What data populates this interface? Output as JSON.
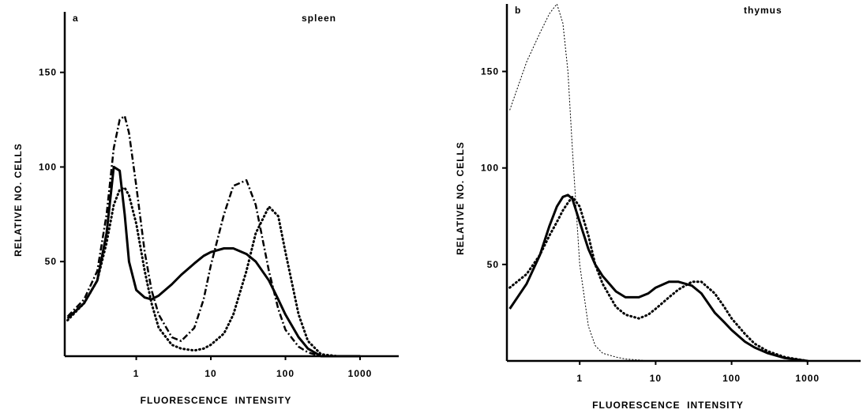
{
  "chart_data": [
    {
      "type": "line",
      "panel_label": "a",
      "title": "spleen",
      "xlabel": "FLUORESCENCE  INTENSITY",
      "ylabel": "RELATIVE NO. CELLS",
      "log_x": true,
      "xlim": [
        0.11,
        3300
      ],
      "ylim": [
        0,
        182
      ],
      "xticks": [
        1,
        10,
        100,
        1000
      ],
      "yticks": [
        50,
        100,
        150
      ],
      "x": [
        0.12,
        0.2,
        0.3,
        0.4,
        0.5,
        0.6,
        0.7,
        0.8,
        1,
        1.3,
        1.6,
        2,
        3,
        4,
        6,
        8,
        10,
        15,
        20,
        30,
        40,
        60,
        80,
        100,
        150,
        200,
        300,
        500,
        1000
      ],
      "series": [
        {
          "color": "#000000",
          "style": "solid",
          "values": [
            20,
            28,
            40,
            65,
            100,
            98,
            75,
            50,
            35,
            31,
            30,
            32,
            38,
            43,
            49,
            53,
            55,
            57,
            57,
            54,
            50,
            40,
            30,
            22,
            10,
            4,
            0,
            0,
            0
          ]
        },
        {
          "color": "#000000",
          "style": "dashdot",
          "values": [
            21,
            30,
            45,
            75,
            110,
            125,
            127,
            118,
            90,
            55,
            35,
            22,
            10,
            8,
            15,
            30,
            48,
            75,
            90,
            93,
            80,
            45,
            25,
            14,
            5,
            2,
            0,
            0,
            0
          ]
        },
        {
          "color": "#000000",
          "style": "dotted",
          "values": [
            19,
            28,
            40,
            60,
            80,
            88,
            89,
            85,
            70,
            45,
            28,
            15,
            6,
            4,
            3,
            4,
            6,
            12,
            22,
            45,
            65,
            79,
            74,
            55,
            22,
            8,
            1,
            0,
            0
          ]
        }
      ]
    },
    {
      "type": "line",
      "panel_label": "b",
      "title": "thymus",
      "xlabel": "FLUORESCENCE  INTENSITY",
      "ylabel": "RELATIVE NO. CELLS",
      "log_x": true,
      "xlim": [
        0.11,
        5000
      ],
      "ylim": [
        0,
        185
      ],
      "xticks": [
        1,
        10,
        100,
        1000
      ],
      "yticks": [
        50,
        100,
        150
      ],
      "x": [
        0.12,
        0.2,
        0.3,
        0.4,
        0.5,
        0.6,
        0.7,
        0.8,
        1,
        1.3,
        1.6,
        2,
        3,
        4,
        6,
        8,
        10,
        15,
        20,
        30,
        40,
        60,
        80,
        100,
        150,
        200,
        300,
        500,
        1000
      ],
      "series": [
        {
          "color": "#000000",
          "style": "dashed",
          "values": [
            130,
            155,
            170,
            180,
            185,
            175,
            150,
            110,
            50,
            18,
            8,
            4,
            2,
            1,
            0.5,
            0,
            0,
            0,
            0,
            0,
            0,
            0,
            0,
            0,
            0,
            0,
            0,
            0,
            0
          ]
        },
        {
          "color": "#000000",
          "style": "solid",
          "values": [
            27,
            40,
            55,
            70,
            80,
            85,
            86,
            84,
            72,
            58,
            50,
            44,
            36,
            33,
            33,
            35,
            38,
            41,
            41,
            39,
            35,
            25,
            20,
            16,
            10,
            7,
            4,
            1.5,
            0
          ]
        },
        {
          "color": "#000000",
          "style": "dotted",
          "values": [
            38,
            45,
            55,
            65,
            72,
            78,
            82,
            85,
            80,
            65,
            50,
            40,
            28,
            24,
            22,
            24,
            27,
            33,
            37,
            41,
            41,
            35,
            28,
            22,
            14,
            9,
            5,
            2,
            0
          ]
        }
      ]
    }
  ]
}
